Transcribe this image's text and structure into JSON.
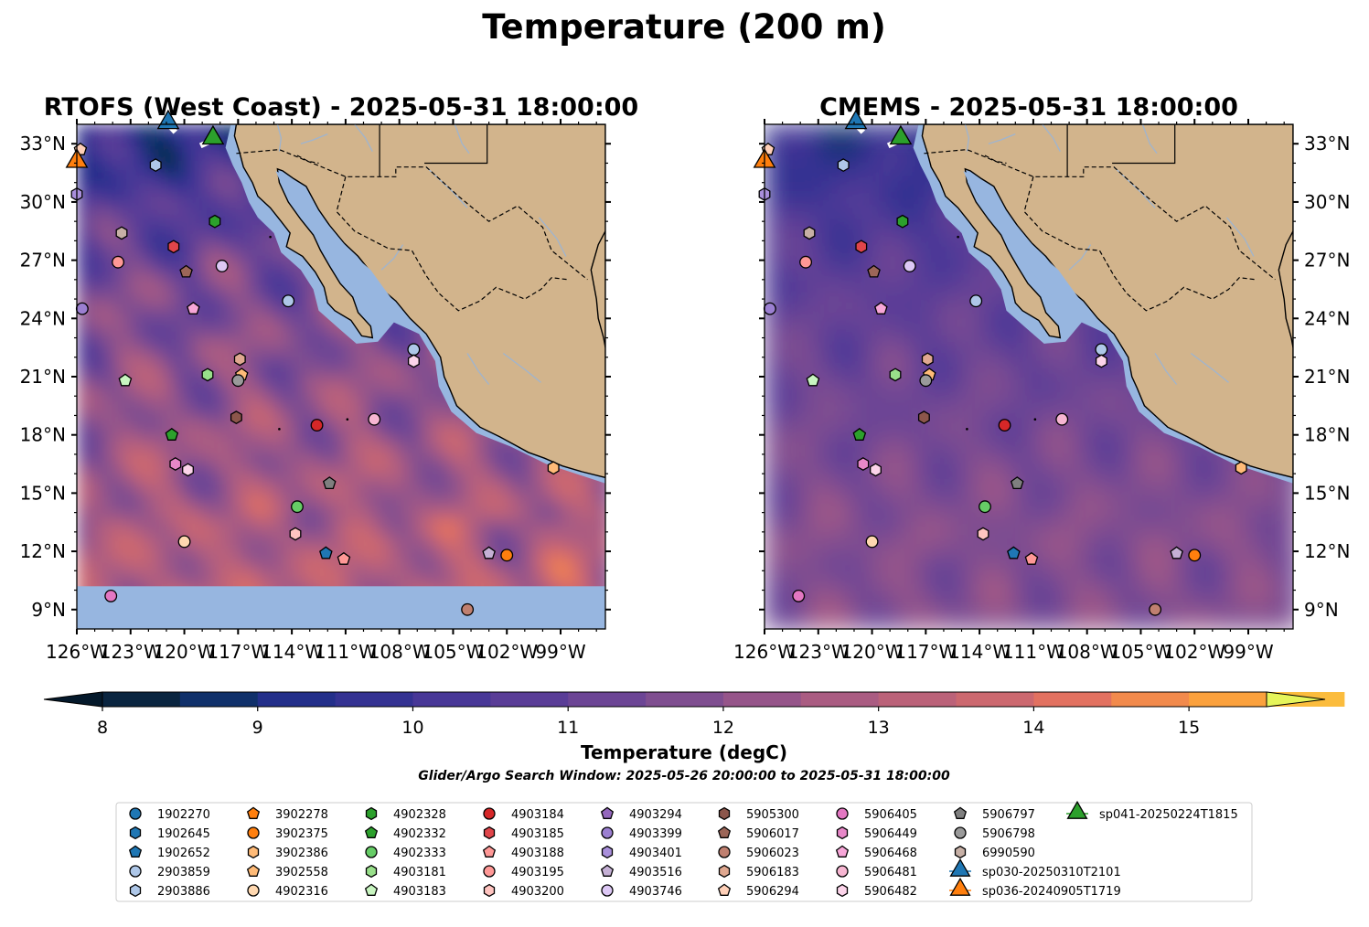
{
  "suptitle": "Temperature (200 m)",
  "panels": [
    {
      "title": "RTOFS (West Coast) - 2025-05-31 18:00:00",
      "field": "rtofs"
    },
    {
      "title": "CMEMS - 2025-05-31 18:00:00",
      "field": "cmems"
    }
  ],
  "colorbar": {
    "label": "Temperature (degC)",
    "ticks": [
      8,
      9,
      10,
      11,
      12,
      13,
      14,
      15
    ],
    "tick_labels": [
      "8",
      "9",
      "10",
      "11",
      "12",
      "13",
      "14",
      "15"
    ],
    "range": [
      8,
      15.5
    ],
    "step": 0.5,
    "extend": "both",
    "colors": [
      "#0a2540",
      "#10306a",
      "#232f8a",
      "#343292",
      "#483797",
      "#5a3d97",
      "#6c4595",
      "#7f4e90",
      "#96558a",
      "#aa5c82",
      "#bb6279",
      "#cc686f",
      "#e27160",
      "#f28a4c",
      "#fba13d",
      "#fbbc3d"
    ],
    "under_color": "#04192b",
    "over_color": "#e6f55a"
  },
  "window_text": "Glider/Argo Search Window: 2025-05-26 20:00:00 to 2025-05-31 18:00:00",
  "map": {
    "lon_range": [
      -126,
      -96.5
    ],
    "lat_range": [
      8,
      34
    ],
    "land_color": "#d2b48c",
    "shelf_color": "#97b6e0",
    "river_color": "#9fb4cf",
    "nodata_lat": 10.2
  },
  "chart_data": {
    "type": "scatter",
    "title": "Temperature (200 m)",
    "xlabel": "",
    "ylabel": "",
    "xticks": [
      -126,
      -123,
      -120,
      -117,
      -114,
      -111,
      -108,
      -105,
      -102,
      -99
    ],
    "xtick_labels": [
      "126°W",
      "123°W",
      "120°W",
      "117°W",
      "114°W",
      "111°W",
      "108°W",
      "105°W",
      "102°W",
      "99°W"
    ],
    "yticks": [
      9,
      12,
      15,
      18,
      21,
      24,
      27,
      30,
      33
    ],
    "ytick_labels": [
      "9°N",
      "12°N",
      "15°N",
      "18°N",
      "21°N",
      "24°N",
      "27°N",
      "30°N",
      "33°N"
    ],
    "xlim": [
      -126,
      -96.5
    ],
    "ylim": [
      8,
      34
    ],
    "grid": false,
    "series": [
      {
        "name": "1902270",
        "marker": "circle",
        "color": "#1f77b4",
        "points": []
      },
      {
        "name": "1902645",
        "marker": "hexagon",
        "color": "#1f77b4",
        "points": []
      },
      {
        "name": "1902652",
        "marker": "pentagon",
        "color": "#1f77b4",
        "points": [
          [
            -112.1,
            11.9
          ]
        ]
      },
      {
        "name": "2903859",
        "marker": "circle",
        "color": "#aec7e8",
        "points": [
          [
            -107.2,
            22.4
          ],
          [
            -114.2,
            24.9
          ]
        ]
      },
      {
        "name": "2903886",
        "marker": "hexagon",
        "color": "#aec7e8",
        "points": [
          [
            -121.6,
            31.9
          ]
        ]
      },
      {
        "name": "3902278",
        "marker": "pentagon",
        "color": "#ff7f0e",
        "points": []
      },
      {
        "name": "3902375",
        "marker": "circle",
        "color": "#ff7f0e",
        "points": [
          [
            -102.0,
            11.8
          ]
        ]
      },
      {
        "name": "3902386",
        "marker": "hexagon",
        "color": "#ffbb78",
        "points": [
          [
            -99.4,
            16.3
          ]
        ]
      },
      {
        "name": "3902558",
        "marker": "pentagon",
        "color": "#ffbb78",
        "points": [
          [
            -116.8,
            21.1
          ]
        ]
      },
      {
        "name": "4902316",
        "marker": "circle",
        "color": "#ffd8b0",
        "points": [
          [
            -120.0,
            12.5
          ]
        ]
      },
      {
        "name": "4902328",
        "marker": "hexagon",
        "color": "#2ca02c",
        "points": [
          [
            -118.3,
            29.0
          ]
        ]
      },
      {
        "name": "4902332",
        "marker": "pentagon",
        "color": "#2ca02c",
        "points": [
          [
            -120.7,
            18.0
          ]
        ]
      },
      {
        "name": "4902333",
        "marker": "circle",
        "color": "#66cc66",
        "points": [
          [
            -113.7,
            14.3
          ]
        ]
      },
      {
        "name": "4903181",
        "marker": "hexagon",
        "color": "#98df8a",
        "points": [
          [
            -118.7,
            21.1
          ]
        ]
      },
      {
        "name": "4903183",
        "marker": "pentagon",
        "color": "#c8f5c0",
        "points": [
          [
            -123.3,
            20.8
          ]
        ]
      },
      {
        "name": "4903184",
        "marker": "circle",
        "color": "#d62728",
        "points": [
          [
            -112.6,
            18.5
          ]
        ]
      },
      {
        "name": "4903185",
        "marker": "hexagon",
        "color": "#e0454a",
        "points": [
          [
            -120.6,
            27.7
          ]
        ]
      },
      {
        "name": "4903188",
        "marker": "pentagon",
        "color": "#ff9896",
        "points": [
          [
            -111.1,
            11.6
          ]
        ]
      },
      {
        "name": "4903195",
        "marker": "circle",
        "color": "#ff9896",
        "points": [
          [
            -123.7,
            26.9
          ]
        ]
      },
      {
        "name": "4903200",
        "marker": "hexagon",
        "color": "#ffc4c0",
        "points": [
          [
            -113.8,
            12.9
          ]
        ]
      },
      {
        "name": "4903294",
        "marker": "pentagon",
        "color": "#9467bd",
        "points": []
      },
      {
        "name": "4903399",
        "marker": "circle",
        "color": "#9b7fd1",
        "points": [
          [
            -125.7,
            24.5
          ]
        ]
      },
      {
        "name": "4903401",
        "marker": "hexagon",
        "color": "#a98fdb",
        "points": [
          [
            -126.0,
            30.4
          ]
        ]
      },
      {
        "name": "4903516",
        "marker": "pentagon",
        "color": "#c5b0d5",
        "points": [
          [
            -103.0,
            11.9
          ]
        ]
      },
      {
        "name": "4903746",
        "marker": "circle",
        "color": "#ddc8f5",
        "points": [
          [
            -117.9,
            26.7
          ]
        ]
      },
      {
        "name": "5905300",
        "marker": "hexagon",
        "color": "#8c564b",
        "points": [
          [
            -117.1,
            18.9
          ]
        ]
      },
      {
        "name": "5906017",
        "marker": "pentagon",
        "color": "#9c6658",
        "points": [
          [
            -119.9,
            26.4
          ]
        ]
      },
      {
        "name": "5906023",
        "marker": "circle",
        "color": "#c08070",
        "points": [
          [
            -104.2,
            9.0
          ]
        ]
      },
      {
        "name": "5906183",
        "marker": "hexagon",
        "color": "#e0a890",
        "points": [
          [
            -116.9,
            21.9
          ]
        ]
      },
      {
        "name": "5906294",
        "marker": "pentagon",
        "color": "#ffd0b8",
        "points": [
          [
            -125.8,
            32.7
          ]
        ]
      },
      {
        "name": "5906405",
        "marker": "circle",
        "color": "#e377c2",
        "points": [
          [
            -124.1,
            9.7
          ]
        ]
      },
      {
        "name": "5906449",
        "marker": "hexagon",
        "color": "#e787c8",
        "points": [
          [
            -120.5,
            16.5
          ]
        ]
      },
      {
        "name": "5906468",
        "marker": "pentagon",
        "color": "#f7a6d8",
        "points": [
          [
            -119.5,
            24.5
          ]
        ]
      },
      {
        "name": "5906481",
        "marker": "circle",
        "color": "#f7b6d2",
        "points": [
          [
            -109.4,
            18.8
          ]
        ]
      },
      {
        "name": "5906482",
        "marker": "hexagon",
        "color": "#fcd4ea",
        "points": [
          [
            -107.2,
            21.8
          ],
          [
            -119.8,
            16.2
          ]
        ]
      },
      {
        "name": "5906797",
        "marker": "pentagon",
        "color": "#7f7f7f",
        "points": [
          [
            -111.9,
            15.5
          ]
        ]
      },
      {
        "name": "5906798",
        "marker": "circle",
        "color": "#9a9a9a",
        "points": [
          [
            -117.0,
            20.8
          ]
        ]
      },
      {
        "name": "6990590",
        "marker": "hexagon",
        "color": "#c7b0a6",
        "points": [
          [
            -123.5,
            28.4
          ]
        ]
      },
      {
        "name": "sp030-20250310T2101",
        "marker": "triangle",
        "color": "#1f77b4",
        "points": [
          [
            -120.9,
            34.0
          ]
        ],
        "track": [
          [
            -120.9,
            34.0
          ],
          [
            -120.5,
            33.6
          ]
        ]
      },
      {
        "name": "sp036-20240905T1719",
        "marker": "triangle",
        "color": "#ff7f0e",
        "points": [
          [
            -126.0,
            32.0
          ]
        ],
        "track": [
          [
            -126.0,
            32.0
          ],
          [
            -126.3,
            32.4
          ]
        ]
      },
      {
        "name": "sp041-20250224T1815",
        "marker": "triangle",
        "color": "#2ca02c",
        "points": [
          [
            -118.4,
            33.2
          ]
        ],
        "track": [
          [
            -118.4,
            33.2
          ],
          [
            -119.1,
            32.9
          ]
        ]
      }
    ]
  }
}
